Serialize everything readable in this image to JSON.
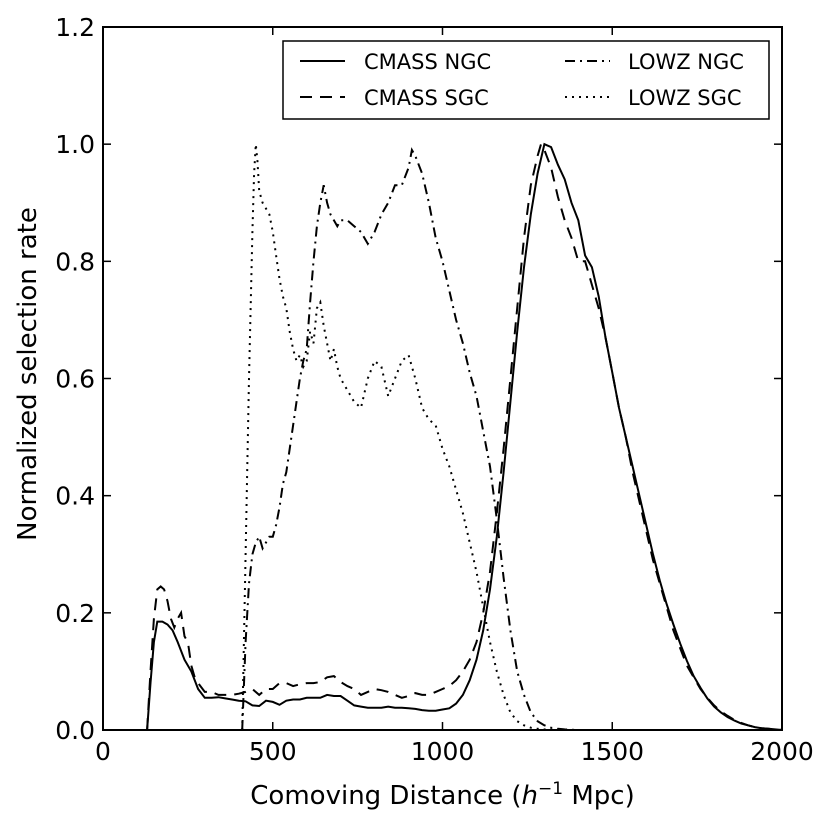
{
  "chart_data": {
    "type": "line",
    "xlabel_prefix": "Comoving Distance (",
    "xlabel_unit_base": "h",
    "xlabel_unit_exp": "−1",
    "xlabel_suffix": " Mpc)",
    "ylabel": "Normalized selection rate",
    "xlim": [
      0,
      2000
    ],
    "ylim": [
      0.0,
      1.2
    ],
    "xticks": [
      0,
      500,
      1000,
      1500,
      2000
    ],
    "xtick_labels": [
      "0",
      "500",
      "1000",
      "1500",
      "2000"
    ],
    "yticks": [
      0.0,
      0.2,
      0.4,
      0.6,
      0.8,
      1.0,
      1.2
    ],
    "ytick_labels": [
      "0.0",
      "0.2",
      "0.4",
      "0.6",
      "0.8",
      "1.0",
      "1.2"
    ],
    "legend_position": "top-right",
    "series": [
      {
        "name": "CMASS NGC",
        "linestyle": "solid",
        "x": [
          130,
          140,
          150,
          160,
          175,
          190,
          205,
          220,
          240,
          260,
          280,
          300,
          320,
          340,
          360,
          380,
          400,
          420,
          440,
          460,
          480,
          500,
          520,
          540,
          560,
          580,
          600,
          620,
          640,
          660,
          680,
          700,
          720,
          740,
          760,
          780,
          800,
          820,
          840,
          860,
          880,
          900,
          920,
          940,
          960,
          980,
          1000,
          1020,
          1040,
          1060,
          1080,
          1100,
          1120,
          1140,
          1160,
          1180,
          1200,
          1220,
          1240,
          1260,
          1280,
          1300,
          1320,
          1340,
          1360,
          1380,
          1400,
          1420,
          1440,
          1460,
          1480,
          1500,
          1520,
          1540,
          1560,
          1580,
          1600,
          1620,
          1640,
          1660,
          1680,
          1700,
          1720,
          1740,
          1760,
          1780,
          1800,
          1820,
          1840,
          1860,
          1880,
          1900,
          1920,
          1940,
          1960,
          1980,
          2000
        ],
        "y": [
          0.0,
          0.08,
          0.15,
          0.185,
          0.185,
          0.18,
          0.17,
          0.15,
          0.12,
          0.1,
          0.07,
          0.055,
          0.055,
          0.056,
          0.054,
          0.052,
          0.05,
          0.049,
          0.042,
          0.041,
          0.05,
          0.048,
          0.043,
          0.05,
          0.052,
          0.052,
          0.055,
          0.055,
          0.055,
          0.06,
          0.058,
          0.058,
          0.05,
          0.042,
          0.04,
          0.038,
          0.038,
          0.038,
          0.04,
          0.038,
          0.038,
          0.037,
          0.036,
          0.034,
          0.033,
          0.033,
          0.035,
          0.037,
          0.045,
          0.06,
          0.085,
          0.12,
          0.17,
          0.24,
          0.33,
          0.44,
          0.56,
          0.68,
          0.79,
          0.88,
          0.95,
          1.0,
          0.995,
          0.965,
          0.94,
          0.9,
          0.87,
          0.81,
          0.79,
          0.74,
          0.67,
          0.61,
          0.55,
          0.5,
          0.45,
          0.4,
          0.35,
          0.3,
          0.255,
          0.215,
          0.18,
          0.148,
          0.118,
          0.092,
          0.072,
          0.054,
          0.04,
          0.03,
          0.022,
          0.016,
          0.011,
          0.008,
          0.005,
          0.003,
          0.002,
          0.001,
          0.0
        ]
      },
      {
        "name": "CMASS SGC",
        "linestyle": "dashed",
        "x": [
          130,
          140,
          150,
          160,
          170,
          180,
          190,
          200,
          210,
          220,
          230,
          240,
          250,
          260,
          270,
          280,
          300,
          320,
          340,
          360,
          380,
          400,
          420,
          440,
          460,
          480,
          500,
          520,
          540,
          560,
          580,
          600,
          620,
          640,
          660,
          680,
          700,
          720,
          740,
          760,
          780,
          800,
          820,
          840,
          860,
          880,
          900,
          920,
          940,
          960,
          980,
          1000,
          1020,
          1040,
          1060,
          1080,
          1100,
          1120,
          1140,
          1160,
          1180,
          1200,
          1220,
          1240,
          1260,
          1280,
          1290,
          1300,
          1320,
          1340,
          1360,
          1380,
          1400,
          1420,
          1440,
          1460,
          1480,
          1500,
          1520,
          1540,
          1560,
          1580,
          1600,
          1620,
          1640,
          1660,
          1680,
          1700,
          1720,
          1740,
          1760,
          1780,
          1800,
          1820,
          1840,
          1860,
          1880,
          1900,
          1920,
          1940,
          1960,
          1980,
          2000
        ],
        "y": [
          0.0,
          0.1,
          0.19,
          0.24,
          0.245,
          0.24,
          0.22,
          0.19,
          0.175,
          0.19,
          0.2,
          0.16,
          0.15,
          0.11,
          0.09,
          0.08,
          0.065,
          0.065,
          0.06,
          0.06,
          0.06,
          0.062,
          0.065,
          0.07,
          0.06,
          0.07,
          0.07,
          0.08,
          0.08,
          0.075,
          0.078,
          0.08,
          0.08,
          0.082,
          0.09,
          0.092,
          0.082,
          0.075,
          0.07,
          0.06,
          0.065,
          0.07,
          0.068,
          0.065,
          0.06,
          0.055,
          0.058,
          0.063,
          0.06,
          0.06,
          0.065,
          0.07,
          0.075,
          0.085,
          0.1,
          0.12,
          0.15,
          0.2,
          0.27,
          0.37,
          0.48,
          0.6,
          0.72,
          0.84,
          0.93,
          0.98,
          1.0,
          0.99,
          0.96,
          0.91,
          0.87,
          0.84,
          0.8,
          0.8,
          0.76,
          0.72,
          0.67,
          0.61,
          0.55,
          0.5,
          0.44,
          0.39,
          0.34,
          0.29,
          0.25,
          0.21,
          0.17,
          0.14,
          0.11,
          0.09,
          0.07,
          0.055,
          0.042,
          0.032,
          0.024,
          0.017,
          0.012,
          0.008,
          0.005,
          0.003,
          0.002,
          0.001,
          0.0
        ]
      },
      {
        "name": "LOWZ NGC",
        "linestyle": "dashdot",
        "x": [
          410,
          420,
          430,
          440,
          450,
          460,
          470,
          480,
          490,
          500,
          510,
          520,
          530,
          540,
          550,
          560,
          570,
          580,
          590,
          600,
          610,
          620,
          630,
          640,
          650,
          660,
          670,
          680,
          690,
          700,
          720,
          740,
          760,
          780,
          800,
          820,
          840,
          860,
          880,
          900,
          910,
          920,
          940,
          960,
          980,
          1000,
          1020,
          1040,
          1060,
          1080,
          1100,
          1120,
          1140,
          1160,
          1180,
          1200,
          1220,
          1240,
          1260,
          1280,
          1300,
          1320,
          1340,
          1360,
          1380,
          1400
        ],
        "y": [
          0.0,
          0.15,
          0.25,
          0.3,
          0.32,
          0.33,
          0.31,
          0.32,
          0.33,
          0.33,
          0.35,
          0.38,
          0.42,
          0.44,
          0.48,
          0.52,
          0.56,
          0.6,
          0.63,
          0.65,
          0.73,
          0.8,
          0.86,
          0.9,
          0.93,
          0.9,
          0.88,
          0.87,
          0.86,
          0.87,
          0.87,
          0.86,
          0.85,
          0.83,
          0.85,
          0.88,
          0.9,
          0.93,
          0.93,
          0.96,
          0.99,
          0.98,
          0.95,
          0.9,
          0.84,
          0.8,
          0.75,
          0.7,
          0.66,
          0.61,
          0.57,
          0.51,
          0.45,
          0.36,
          0.26,
          0.17,
          0.1,
          0.06,
          0.03,
          0.015,
          0.008,
          0.004,
          0.002,
          0.001,
          0.0005,
          0.0
        ]
      },
      {
        "name": "LOWZ SGC",
        "linestyle": "dotted",
        "x": [
          410,
          420,
          430,
          440,
          445,
          450,
          455,
          460,
          470,
          480,
          490,
          500,
          510,
          520,
          530,
          540,
          550,
          560,
          570,
          580,
          590,
          600,
          610,
          620,
          630,
          640,
          650,
          660,
          670,
          680,
          690,
          700,
          720,
          740,
          760,
          780,
          800,
          820,
          840,
          860,
          880,
          900,
          920,
          940,
          960,
          980,
          1000,
          1020,
          1040,
          1060,
          1080,
          1100,
          1120,
          1140,
          1160,
          1180,
          1200,
          1220,
          1240,
          1260,
          1280,
          1300,
          1320,
          1340,
          1360,
          1380,
          1400
        ],
        "y": [
          0.0,
          0.3,
          0.6,
          0.85,
          0.95,
          1.0,
          0.97,
          0.92,
          0.9,
          0.89,
          0.88,
          0.85,
          0.81,
          0.77,
          0.74,
          0.72,
          0.68,
          0.65,
          0.63,
          0.64,
          0.62,
          0.63,
          0.68,
          0.66,
          0.72,
          0.73,
          0.69,
          0.66,
          0.63,
          0.65,
          0.62,
          0.6,
          0.58,
          0.56,
          0.55,
          0.6,
          0.63,
          0.62,
          0.57,
          0.6,
          0.63,
          0.64,
          0.6,
          0.55,
          0.53,
          0.52,
          0.48,
          0.45,
          0.41,
          0.37,
          0.32,
          0.27,
          0.21,
          0.15,
          0.1,
          0.06,
          0.03,
          0.015,
          0.008,
          0.004,
          0.002,
          0.001,
          0.0005,
          0.0,
          0.0,
          0.0,
          0.0
        ]
      }
    ]
  }
}
